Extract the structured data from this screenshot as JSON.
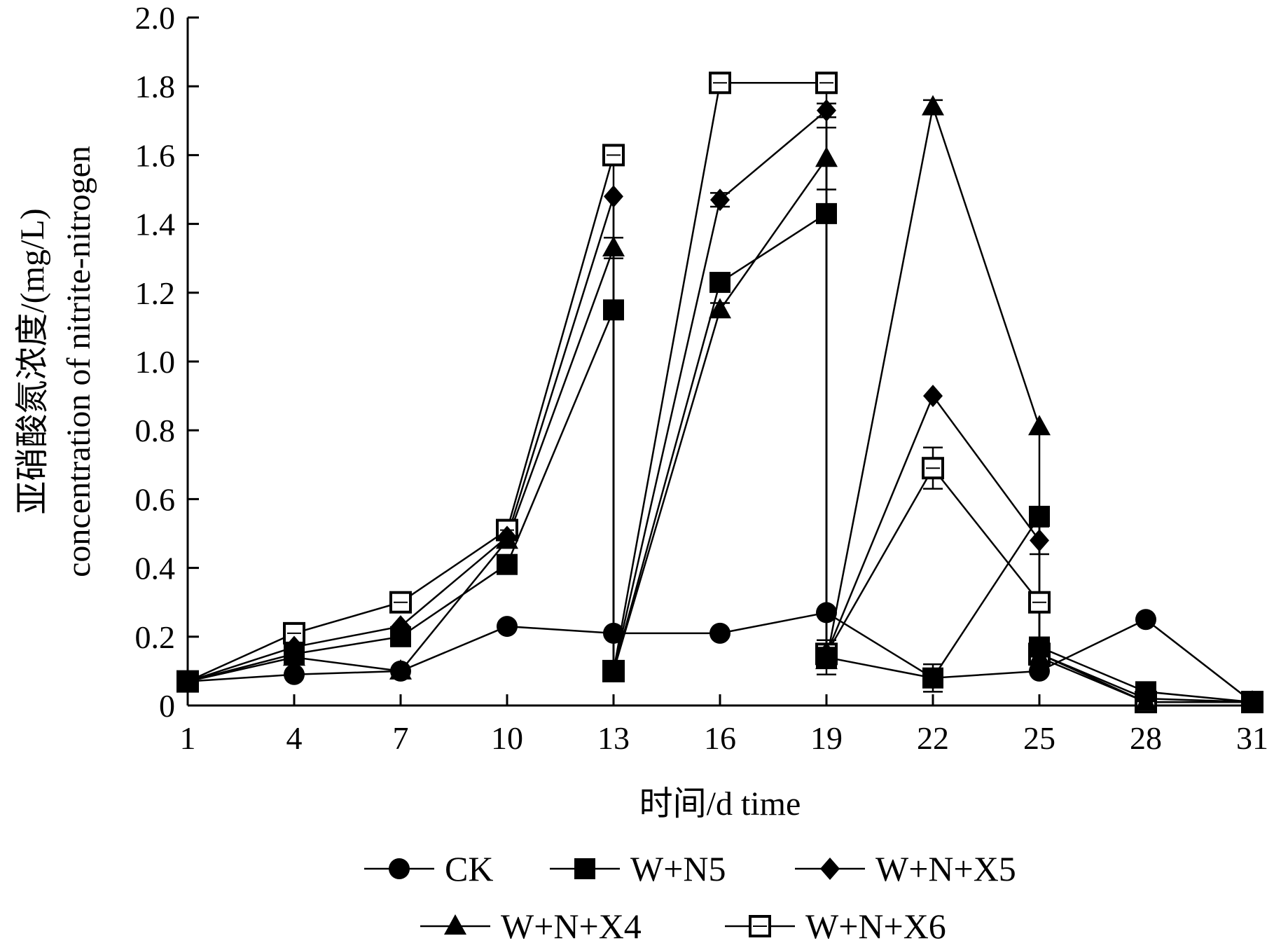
{
  "chart_data": {
    "type": "line",
    "title": "",
    "xlabel": "时间/d time",
    "ylabel_cn": "亚硝酸氮浓度/(mg/L)",
    "ylabel_en": "concentration of nitrite-nitrogen",
    "x": [
      1,
      4,
      7,
      10,
      13,
      16,
      19,
      22,
      25,
      28,
      31
    ],
    "x_ticks": [
      "1",
      "4",
      "7",
      "10",
      "13",
      "16",
      "19",
      "22",
      "25",
      "28",
      "31"
    ],
    "y_ticks": [
      "0",
      "0.2",
      "0.4",
      "0.6",
      "0.8",
      "1.0",
      "1.2",
      "1.4",
      "1.6",
      "1.8",
      "2.0"
    ],
    "xlim": [
      1,
      31
    ],
    "ylim": [
      0,
      2.0
    ],
    "grid": false,
    "legend_position": "bottom",
    "series": [
      {
        "name": "CK",
        "marker": "circle",
        "points": [
          [
            1,
            0.07
          ],
          [
            4,
            0.09
          ],
          [
            7,
            0.1
          ],
          [
            10,
            0.23
          ],
          [
            13,
            0.21
          ],
          [
            16,
            0.21
          ],
          [
            19,
            0.27
          ],
          [
            22,
            0.08
          ],
          [
            25,
            0.1
          ],
          [
            28,
            0.25
          ],
          [
            31,
            0.01
          ]
        ]
      },
      {
        "name": "W+N5",
        "marker": "square",
        "points": [
          [
            1,
            0.07
          ],
          [
            4,
            0.15
          ],
          [
            7,
            0.2
          ],
          [
            10,
            0.41
          ],
          [
            13,
            1.15
          ],
          [
            13,
            0.1
          ],
          [
            16,
            1.23
          ],
          [
            19,
            1.43
          ],
          [
            19,
            0.14
          ],
          [
            22,
            0.08
          ],
          [
            25,
            0.55
          ],
          [
            25,
            0.17
          ],
          [
            28,
            0.04
          ],
          [
            31,
            0.01
          ]
        ]
      },
      {
        "name": "W+N+X5",
        "marker": "diamond",
        "points": [
          [
            1,
            0.07
          ],
          [
            4,
            0.17
          ],
          [
            7,
            0.23
          ],
          [
            10,
            0.49
          ],
          [
            13,
            1.48
          ],
          [
            13,
            0.1
          ],
          [
            16,
            1.47
          ],
          [
            19,
            1.73
          ],
          [
            19,
            0.15
          ],
          [
            22,
            0.9
          ],
          [
            25,
            0.48
          ],
          [
            25,
            0.15
          ],
          [
            28,
            0.02
          ],
          [
            31,
            0.01
          ]
        ]
      },
      {
        "name": "W+N+X4",
        "marker": "triangle",
        "points": [
          [
            1,
            0.07
          ],
          [
            4,
            0.14
          ],
          [
            7,
            0.1
          ],
          [
            10,
            0.48
          ],
          [
            13,
            1.33
          ],
          [
            13,
            0.1
          ],
          [
            16,
            1.15
          ],
          [
            19,
            1.59
          ],
          [
            19,
            0.13
          ],
          [
            22,
            1.74
          ],
          [
            25,
            0.81
          ],
          [
            25,
            0.14
          ],
          [
            28,
            0.01
          ],
          [
            31,
            0.01
          ]
        ]
      },
      {
        "name": "W+N+X6",
        "marker": "open-square",
        "points": [
          [
            1,
            0.07
          ],
          [
            4,
            0.21
          ],
          [
            7,
            0.3
          ],
          [
            10,
            0.51
          ],
          [
            13,
            1.6
          ],
          [
            13,
            0.1
          ],
          [
            16,
            1.81
          ],
          [
            19,
            1.81
          ],
          [
            19,
            0.15
          ],
          [
            22,
            0.69
          ],
          [
            25,
            0.3
          ],
          [
            25,
            0.15
          ],
          [
            28,
            0.01
          ],
          [
            31,
            0.01
          ]
        ]
      }
    ],
    "error_bars": [
      {
        "x": 13,
        "y": 1.33,
        "err": 0.03
      },
      {
        "x": 19,
        "y": 1.59,
        "err": 0.09
      },
      {
        "x": 22,
        "y": 1.74,
        "err": 0.02
      },
      {
        "x": 22,
        "y": 0.69,
        "err": 0.06
      },
      {
        "x": 22,
        "y": 0.08,
        "err": 0.04
      },
      {
        "x": 19,
        "y": 0.14,
        "err": 0.05
      },
      {
        "x": 25,
        "y": 0.48,
        "err": 0.04
      },
      {
        "x": 16,
        "y": 1.47,
        "err": 0.02
      },
      {
        "x": 16,
        "y": 1.15,
        "err": 0.02
      },
      {
        "x": 13,
        "y": 1.6,
        "err": 0.02
      },
      {
        "x": 19,
        "y": 1.73,
        "err": 0.02
      }
    ]
  }
}
